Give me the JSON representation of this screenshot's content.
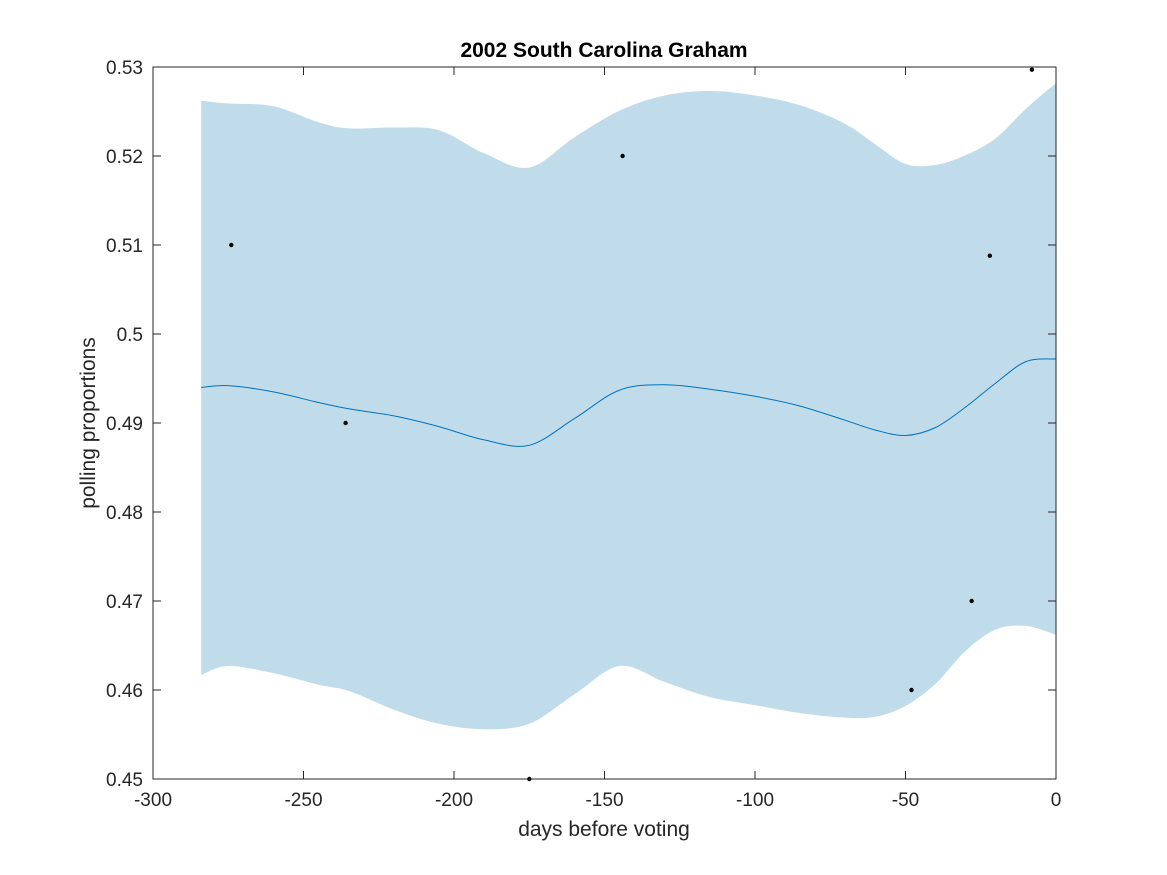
{
  "chart_data": {
    "type": "line",
    "title": "2002 South Carolina Graham",
    "xlabel": "days before voting",
    "ylabel": "polling proportions",
    "xlim": [
      -300,
      0
    ],
    "ylim": [
      0.45,
      0.53
    ],
    "x_ticks": [
      -300,
      -250,
      -200,
      -150,
      -100,
      -50,
      0
    ],
    "x_tick_labels": [
      "-300",
      "-250",
      "-200",
      "-150",
      "-100",
      "-50",
      "0"
    ],
    "y_ticks": [
      0.45,
      0.46,
      0.47,
      0.48,
      0.49,
      0.5,
      0.51,
      0.52,
      0.53
    ],
    "y_tick_labels": [
      "0.45",
      "0.46",
      "0.47",
      "0.48",
      "0.49",
      "0.5",
      "0.51",
      "0.52",
      "0.53"
    ],
    "grid": false,
    "series": [
      {
        "kind": "confidence-band",
        "color": "#c0dceb",
        "x": [
          -284,
          -275,
          -260,
          -245,
          -235,
          -220,
          -205,
          -190,
          -175,
          -160,
          -145,
          -130,
          -115,
          -100,
          -85,
          -70,
          -60,
          -50,
          -40,
          -30,
          -20,
          -10,
          0
        ],
        "upper": [
          0.5262,
          0.5259,
          0.5256,
          0.5238,
          0.5231,
          0.5232,
          0.5229,
          0.5203,
          0.5187,
          0.5221,
          0.5251,
          0.5268,
          0.5273,
          0.5268,
          0.5257,
          0.5236,
          0.5213,
          0.5191,
          0.519,
          0.5201,
          0.522,
          0.5253,
          0.5282
        ],
        "lower": [
          0.4617,
          0.4627,
          0.4619,
          0.4606,
          0.4599,
          0.4578,
          0.4562,
          0.4556,
          0.4562,
          0.4595,
          0.4627,
          0.4609,
          0.4592,
          0.4583,
          0.4574,
          0.4569,
          0.457,
          0.4582,
          0.4607,
          0.4644,
          0.4668,
          0.4672,
          0.4662
        ]
      },
      {
        "kind": "mean-line",
        "color": "#0072bd",
        "x": [
          -284,
          -275,
          -260,
          -245,
          -235,
          -220,
          -205,
          -190,
          -175,
          -160,
          -145,
          -130,
          -115,
          -100,
          -85,
          -70,
          -60,
          -50,
          -40,
          -30,
          -20,
          -10,
          0
        ],
        "y": [
          0.494,
          0.4942,
          0.4935,
          0.4923,
          0.4916,
          0.4908,
          0.4896,
          0.4881,
          0.4875,
          0.4905,
          0.4937,
          0.4943,
          0.4938,
          0.493,
          0.4919,
          0.4903,
          0.4892,
          0.4886,
          0.4895,
          0.4918,
          0.4945,
          0.4969,
          0.4972
        ]
      },
      {
        "kind": "observations",
        "color": "#000000",
        "x": [
          -274,
          -236,
          -175,
          -144,
          -48,
          -28,
          -22,
          -8
        ],
        "y": [
          0.51,
          0.49,
          0.45,
          0.52,
          0.46,
          0.47,
          0.5088,
          0.5297
        ]
      }
    ]
  }
}
